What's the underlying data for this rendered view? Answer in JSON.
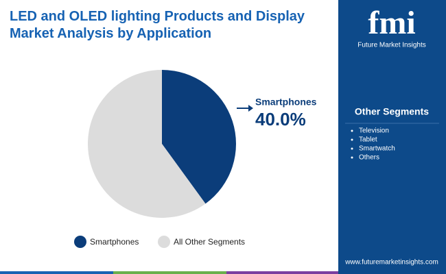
{
  "chart_data": {
    "type": "pie",
    "title": "LED and OLED lighting Products and Display Market Analysis by Application",
    "categories": [
      "Smartphones",
      "All Other Segments"
    ],
    "values": [
      40.0,
      60
    ],
    "value_labels": [
      "40.0%",
      null
    ],
    "colors": [
      "#0b3d7a",
      "#dcdcdc"
    ]
  },
  "sidebar": {
    "title": "Other Segments",
    "items": [
      "Television",
      "Tablet",
      "Smartwatch",
      "Others"
    ]
  },
  "logo": {
    "mark": "fmi",
    "name": "Future Market Insights"
  },
  "footer": {
    "url": "www.futuremarketinsights.com"
  }
}
